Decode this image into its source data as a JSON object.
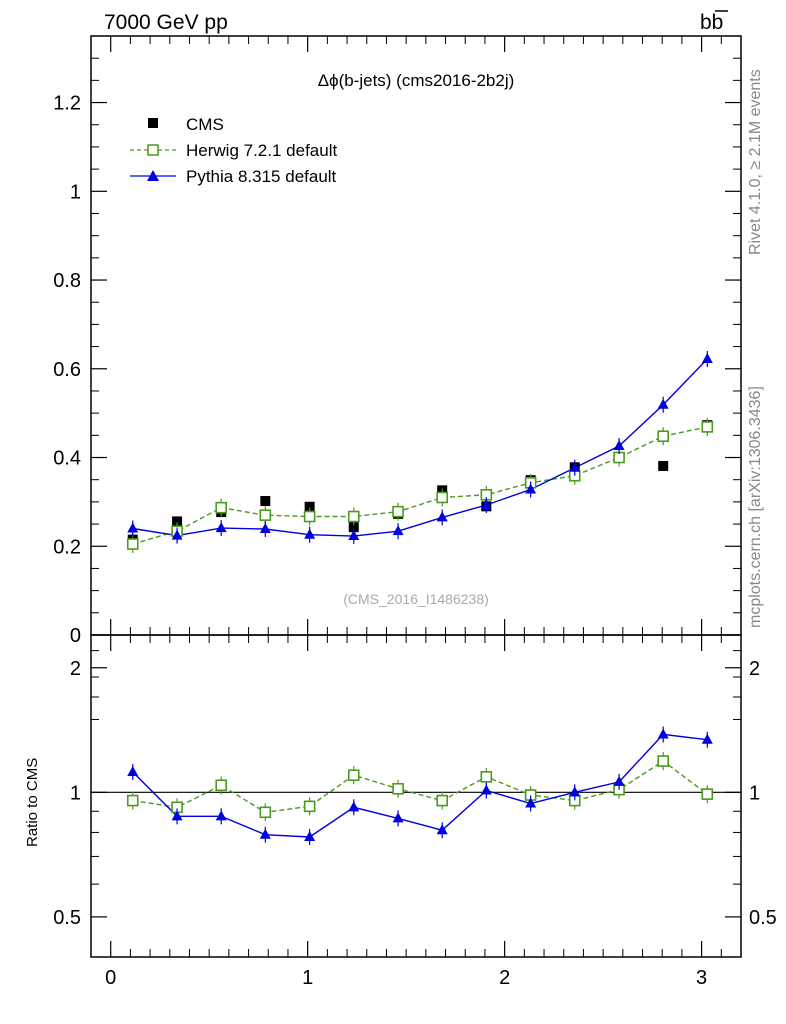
{
  "header": {
    "energy_label": "7000 GeV pp",
    "process_label": "bb",
    "side_rivet": "Rivet 4.1.0, ≥ 2.1M events",
    "side_mcplots": "mcplots.cern.ch [arXiv:1306.3436]"
  },
  "chart_data": {
    "type": "scatter",
    "title": "Δϕ(b-jets) (cms2016-2b2j)",
    "analysis_tag": "(CMS_2016_I1486238)",
    "xlabel": "",
    "ylabel_ratio": "Ratio to CMS",
    "xlim": [
      -0.1,
      3.2
    ],
    "main": {
      "ylim": [
        0,
        1.35
      ],
      "yticks": [
        0,
        0.2,
        0.4,
        0.6,
        0.8,
        1,
        1.2
      ],
      "ytick_labels": [
        "0",
        "0.2",
        "0.4",
        "0.6",
        "0.8",
        "1",
        "1.2"
      ]
    },
    "ratio": {
      "ylim": [
        0.4,
        2.4
      ],
      "yscale": "log",
      "yticks": [
        0.5,
        1,
        2
      ],
      "ytick_labels": [
        "0.5",
        "1",
        "2"
      ]
    },
    "xticks": [
      0,
      1,
      2,
      3
    ],
    "xtick_labels": [
      "0",
      "1",
      "2",
      "3"
    ],
    "x": [
      0.112,
      0.337,
      0.561,
      0.785,
      1.01,
      1.234,
      1.459,
      1.683,
      1.907,
      2.132,
      2.356,
      2.581,
      2.805,
      3.029
    ],
    "series": [
      {
        "name": "CMS",
        "style": "data",
        "color": "#000000",
        "values": [
          0.215,
          0.256,
          0.277,
          0.302,
          0.289,
          0.243,
          0.273,
          0.326,
          0.29,
          0.349,
          0.378,
          0.401,
          0.381,
          0.473
        ],
        "ratio": [
          1,
          1,
          1,
          1,
          1,
          1,
          1,
          1,
          1,
          1,
          1,
          1,
          1,
          1
        ]
      },
      {
        "name": "Herwig 7.2.1 default",
        "style": "dashed-open-square",
        "color": "#4a9a1e",
        "values": [
          0.205,
          0.234,
          0.287,
          0.27,
          0.267,
          0.267,
          0.278,
          0.31,
          0.316,
          0.343,
          0.359,
          0.4,
          0.448,
          0.469
        ],
        "ratio": [
          0.955,
          0.92,
          1.04,
          0.895,
          0.925,
          1.1,
          1.02,
          0.955,
          1.09,
          0.985,
          0.955,
          1.015,
          1.19,
          0.99
        ]
      },
      {
        "name": "Pythia 8.315 default",
        "style": "solid-filled-triangle",
        "color": "#0000e0",
        "values": [
          0.24,
          0.224,
          0.241,
          0.239,
          0.226,
          0.223,
          0.234,
          0.265,
          0.293,
          0.328,
          0.377,
          0.426,
          0.519,
          0.622
        ],
        "ratio": [
          1.12,
          0.875,
          0.875,
          0.79,
          0.78,
          0.92,
          0.865,
          0.81,
          1.01,
          0.94,
          1.0,
          1.06,
          1.38,
          1.34
        ]
      }
    ],
    "legend": [
      "CMS",
      "Herwig 7.2.1 default",
      "Pythia 8.315 default"
    ]
  }
}
